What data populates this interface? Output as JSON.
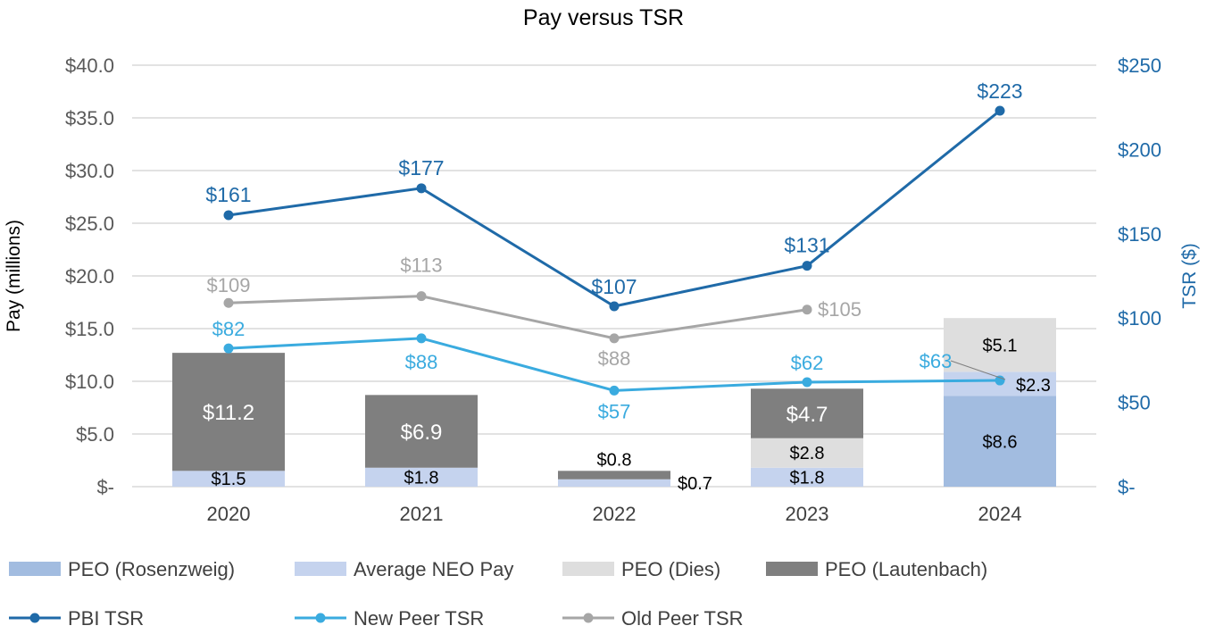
{
  "chart_data": {
    "type": "bar+line",
    "title": "Pay versus TSR",
    "categories": [
      "2020",
      "2021",
      "2022",
      "2023",
      "2024"
    ],
    "ylabel_left": "Pay (millions)",
    "ylabel_right": "TSR ($)",
    "ylim_left": [
      0,
      40
    ],
    "ylim_right": [
      0,
      250
    ],
    "left_ticks": [
      "$-",
      "$5.0",
      "$10.0",
      "$15.0",
      "$20.0",
      "$25.0",
      "$30.0",
      "$35.0",
      "$40.0"
    ],
    "right_ticks": [
      "$-",
      "$50",
      "$100",
      "$150",
      "$200",
      "$250"
    ],
    "bar_series": [
      {
        "name": "PEO (Rosenzweig)",
        "color": "#a2bce0",
        "values": [
          null,
          null,
          null,
          null,
          8.6
        ],
        "labels": [
          "",
          "",
          "",
          "",
          "$8.6"
        ]
      },
      {
        "name": "Average NEO Pay",
        "color": "#c5d3ee",
        "values": [
          1.5,
          1.8,
          0.7,
          1.8,
          2.3
        ],
        "labels": [
          "$1.5",
          "$1.8",
          "$0.7",
          "$1.8",
          "$2.3"
        ]
      },
      {
        "name": "PEO (Dies)",
        "color": "#dedede",
        "values": [
          null,
          null,
          null,
          2.8,
          5.1
        ],
        "labels": [
          "",
          "",
          "",
          "$2.8",
          "$5.1"
        ]
      },
      {
        "name": "PEO (Lautenbach)",
        "color": "#7f7f7f",
        "values": [
          11.2,
          6.9,
          0.8,
          4.7,
          null
        ],
        "labels": [
          "$11.2",
          "$6.9",
          "$0.8",
          "$4.7",
          ""
        ]
      }
    ],
    "line_series": [
      {
        "name": "PBI TSR",
        "color": "#1f6aa8",
        "values": [
          161,
          177,
          107,
          131,
          223
        ],
        "labels": [
          "$161",
          "$177",
          "$107",
          "$131",
          "$223"
        ]
      },
      {
        "name": "New Peer TSR",
        "color": "#3aabdf",
        "values": [
          82,
          88,
          57,
          62,
          63
        ],
        "labels": [
          "$82",
          "$88",
          "$57",
          "$62",
          "$63"
        ]
      },
      {
        "name": "Old Peer TSR",
        "color": "#a6a6a6",
        "values": [
          109,
          113,
          88,
          105,
          null
        ],
        "labels": [
          "$109",
          "$113",
          "$88",
          "$105",
          ""
        ]
      }
    ],
    "legend": [
      {
        "name": "PEO (Rosenzweig)",
        "kind": "bar",
        "color": "#a2bce0"
      },
      {
        "name": "Average NEO Pay",
        "kind": "bar",
        "color": "#c5d3ee"
      },
      {
        "name": "PEO (Dies)",
        "kind": "bar",
        "color": "#dedede"
      },
      {
        "name": "PEO (Lautenbach)",
        "kind": "bar",
        "color": "#7f7f7f"
      },
      {
        "name": "PBI TSR",
        "kind": "line",
        "color": "#1f6aa8"
      },
      {
        "name": "New Peer TSR",
        "kind": "line",
        "color": "#3aabdf"
      },
      {
        "name": "Old Peer TSR",
        "kind": "line",
        "color": "#a6a6a6"
      }
    ],
    "legend_position": "bottom",
    "grid": true
  }
}
